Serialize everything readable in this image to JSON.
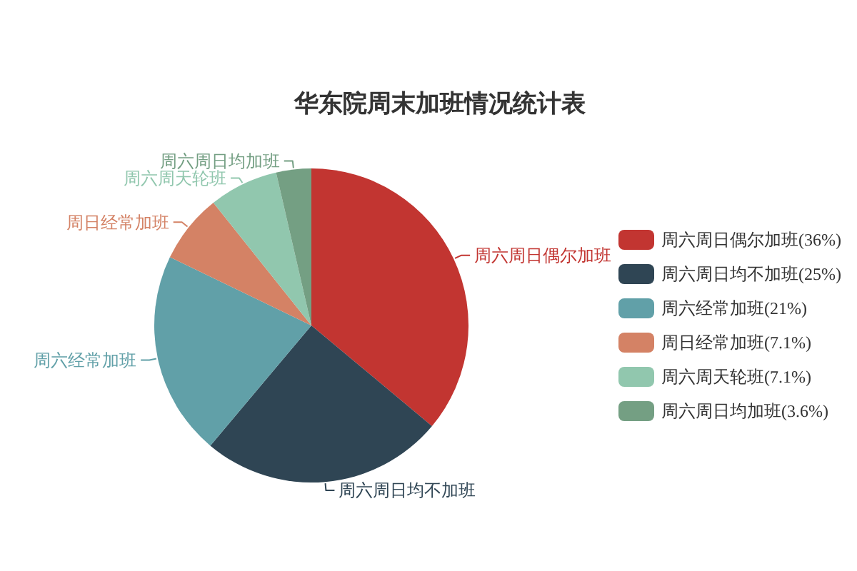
{
  "chart_data": {
    "type": "pie",
    "title": "华东院周末加班情况统计表",
    "categories": [
      "周六周日偶尔加班",
      "周六周日均不加班",
      "周六经常加班",
      "周日经常加班",
      "周六周天轮班",
      "周六周日均加班"
    ],
    "values": [
      36,
      25,
      21,
      7.1,
      7.1,
      3.6
    ],
    "value_labels": [
      "(36%)",
      "(25%)",
      "(21%)",
      "(7.1%)",
      "(7.1%)",
      "(3.6%)"
    ],
    "colors": [
      "#c23531",
      "#2f4554",
      "#61a0a8",
      "#d48265",
      "#91c7ae",
      "#749f83"
    ],
    "legend": "right"
  }
}
